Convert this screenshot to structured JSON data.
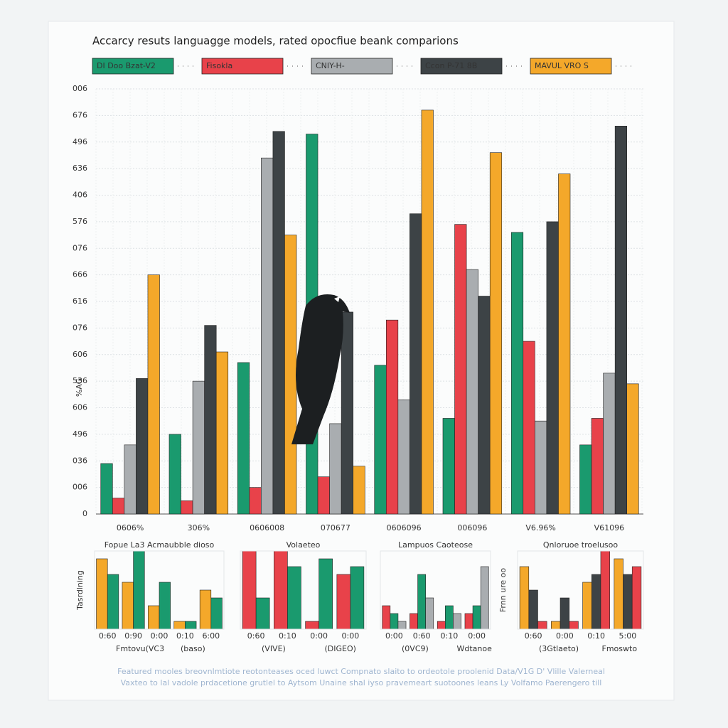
{
  "chart_data": [
    {
      "type": "bar",
      "title": "Accarcy resuts languagge models,  rated opocfiue beank comparions",
      "y_label": "%AG",
      "categories": [
        "0606%",
        "306%",
        "0606008",
        "070677",
        "0606096",
        "006096",
        "V6.96%",
        "V61096"
      ],
      "series": [
        {
          "name": "DI Doo Bzat-V2",
          "color": "#1a9a6e",
          "values": [
            1.9,
            3.0,
            5.7,
            14.3,
            5.6,
            3.6,
            10.6,
            2.6
          ]
        },
        {
          "name": "Fisokla",
          "color": "#e8424a",
          "values": [
            0.6,
            0.5,
            1.0,
            1.4,
            7.3,
            10.9,
            6.5,
            3.6
          ]
        },
        {
          "name": "CNIY-H-",
          "color": "#a9adb0",
          "values": [
            2.6,
            5.0,
            13.4,
            3.4,
            4.3,
            9.2,
            3.5,
            5.3
          ]
        },
        {
          "name": "Ccon P-71 8B",
          "color": "#3d4346",
          "values": [
            5.1,
            7.1,
            14.4,
            7.6,
            11.3,
            8.2,
            11.0,
            14.6
          ]
        },
        {
          "name": "MAVUL VRO S",
          "color": "#f4a82a",
          "values": [
            9.0,
            6.1,
            10.5,
            1.8,
            15.2,
            13.6,
            12.8,
            4.9
          ]
        }
      ],
      "ylim": [
        0,
        16
      ],
      "yticks": [
        0,
        {
          "value": 1,
          "label": "006"
        },
        {
          "value": 2,
          "label": "036"
        },
        {
          "value": 3,
          "label": "496"
        },
        {
          "value": 4,
          "label": "606"
        },
        {
          "value": 5,
          "label": "536"
        },
        {
          "value": 6,
          "label": "606"
        },
        {
          "value": 7,
          "label": "076"
        },
        {
          "value": 8,
          "label": "616"
        },
        {
          "value": 9,
          "label": "666"
        },
        {
          "value": 10,
          "label": "076"
        },
        {
          "value": 11,
          "label": "576"
        },
        {
          "value": 12,
          "label": "406"
        },
        {
          "value": 13,
          "label": "636"
        },
        {
          "value": 14,
          "label": "496"
        },
        {
          "value": 15,
          "label": "676"
        },
        {
          "value": 16,
          "label": "006"
        }
      ],
      "grid": true
    },
    {
      "type": "bar",
      "title": "Fopue La3 Acmaubble dioso",
      "y_label": "Tasrdlning",
      "categories": [
        "0:60",
        "0:90",
        "0:00",
        "0:10",
        "6:00"
      ],
      "series": [
        {
          "color": "#f4a82a",
          "values": [
            9,
            6,
            3,
            1,
            5
          ]
        },
        {
          "color": "#1a9a6e",
          "values": [
            7,
            10,
            6,
            1,
            4
          ]
        }
      ],
      "ylim": [
        0,
        10
      ],
      "notes": [
        "Fmtovu(VC3",
        "(baso)"
      ]
    },
    {
      "type": "bar",
      "title": "Volaeteo",
      "categories": [
        "0:60",
        "0:10",
        "0:00",
        "0:00"
      ],
      "series": [
        {
          "color": "#e8424a",
          "values": [
            10,
            10,
            1,
            7
          ]
        },
        {
          "color": "#1a9a6e",
          "values": [
            4,
            8,
            9,
            8
          ]
        }
      ],
      "ylim": [
        0,
        10
      ],
      "notes": [
        "(VIVE)",
        "(DIGEO)"
      ]
    },
    {
      "type": "bar",
      "title": "Lampuos Caoteose",
      "categories": [
        "0:00",
        "0:60",
        "0:10",
        "0:00"
      ],
      "series": [
        {
          "color": "#e8424a",
          "values": [
            3,
            2,
            1,
            2
          ]
        },
        {
          "color": "#1a9a6e",
          "values": [
            2,
            7,
            3,
            3
          ]
        },
        {
          "color": "#a9adb0",
          "values": [
            1,
            4,
            2,
            8
          ]
        }
      ],
      "ylim": [
        0,
        10
      ],
      "notes": [
        "(0VC9)",
        "Wdtanoe"
      ]
    },
    {
      "type": "bar",
      "title": "Qnloruoe troelusoo",
      "y_label": "Frnn ure oo",
      "categories": [
        "0:60",
        "0:00",
        "0:10",
        "5:00"
      ],
      "series": [
        {
          "color": "#f4a82a",
          "values": [
            8,
            1,
            6,
            9
          ]
        },
        {
          "color": "#3d4346",
          "values": [
            5,
            4,
            7,
            7
          ]
        },
        {
          "color": "#e8424a",
          "values": [
            1,
            1,
            10,
            8
          ]
        }
      ],
      "ylim": [
        0,
        10
      ],
      "notes": [
        "(3Gtlaeto)",
        "Fmoswto"
      ]
    }
  ],
  "footer": [
    "Featured mooles breovnlmtiote reotonteases oced luwct Compnato slaito to ordeotole proolenid Data/V1G D' Vlille Valerneal",
    "Vaxteo to lal vadole prdacetione grutlel to Aytsom Unaine shal iyso pravemeart suotoones leans Ly Volfamo Paerengero till"
  ]
}
